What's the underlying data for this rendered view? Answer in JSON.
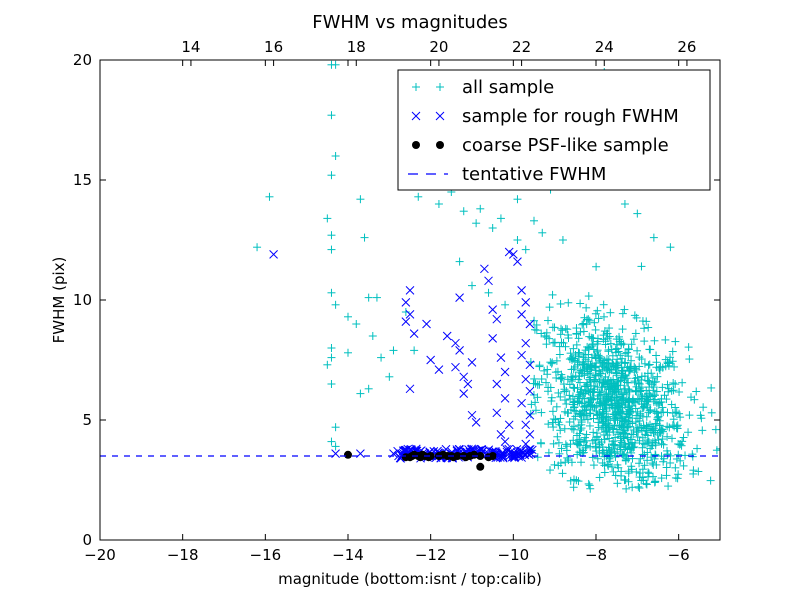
{
  "chart_data": {
    "type": "scatter",
    "title": "FWHM vs magnitudes",
    "xlabel": "magnitude (bottom:isnt / top:calib)",
    "ylabel": "FWHM (pix)",
    "xlim": [
      -20,
      -5
    ],
    "ylim": [
      0,
      20
    ],
    "x_ticks": [
      -20,
      -18,
      -16,
      -14,
      -12,
      -10,
      -8,
      -6
    ],
    "x_tick_labels": [
      "−20",
      "−18",
      "−16",
      "−14",
      "−12",
      "−10",
      "−8",
      "−6"
    ],
    "y_ticks": [
      0,
      5,
      10,
      15,
      20
    ],
    "y_tick_labels": [
      "0",
      "5",
      "10",
      "15",
      "20"
    ],
    "top_axis": {
      "offset": 31.8,
      "ticks": [
        14,
        16,
        18,
        20,
        22,
        24,
        26
      ],
      "tick_labels": [
        "14",
        "16",
        "18",
        "20",
        "22",
        "24",
        "26"
      ]
    },
    "grid": false,
    "legend_position": "top-right",
    "tentative_fwhm": 3.5,
    "series": [
      {
        "name": "all sample",
        "marker": "plus",
        "color": "#00bfbf",
        "points": [
          [
            -16.2,
            12.2
          ],
          [
            -15.9,
            14.3
          ],
          [
            -14.4,
            19.8
          ],
          [
            -14.3,
            19.8
          ],
          [
            -14.4,
            17.7
          ],
          [
            -14.3,
            16.0
          ],
          [
            -14.4,
            15.2
          ],
          [
            -14.5,
            13.4
          ],
          [
            -14.4,
            12.7
          ],
          [
            -14.4,
            12.1
          ],
          [
            -14.4,
            10.3
          ],
          [
            -14.3,
            9.8
          ],
          [
            -14.4,
            8.0
          ],
          [
            -14.4,
            7.6
          ],
          [
            -14.5,
            7.3
          ],
          [
            -14.4,
            6.5
          ],
          [
            -14.3,
            4.7
          ],
          [
            -14.4,
            4.1
          ],
          [
            -14.3,
            3.9
          ],
          [
            -14.0,
            9.3
          ],
          [
            -13.8,
            9.0
          ],
          [
            -14.0,
            7.8
          ],
          [
            -13.6,
            12.6
          ],
          [
            -13.7,
            14.2
          ],
          [
            -13.5,
            10.1
          ],
          [
            -13.3,
            10.1
          ],
          [
            -13.4,
            8.5
          ],
          [
            -13.2,
            7.6
          ],
          [
            -13.5,
            6.3
          ],
          [
            -13.7,
            6.1
          ],
          [
            -13.0,
            6.8
          ],
          [
            -12.9,
            7.9
          ],
          [
            -12.6,
            9.5
          ],
          [
            -12.4,
            7.9
          ],
          [
            -12.3,
            14.3
          ],
          [
            -11.8,
            14.0
          ],
          [
            -11.5,
            14.5
          ],
          [
            -11.2,
            13.7
          ],
          [
            -10.9,
            13.2
          ],
          [
            -10.8,
            13.8
          ],
          [
            -10.5,
            13.0
          ],
          [
            -10.3,
            13.4
          ],
          [
            -9.9,
            14.2
          ],
          [
            -11.3,
            11.6
          ],
          [
            -11.0,
            10.6
          ],
          [
            -10.6,
            10.3
          ],
          [
            -10.2,
            9.8
          ],
          [
            -9.9,
            12.5
          ],
          [
            -9.7,
            12.1
          ],
          [
            -9.5,
            13.3
          ],
          [
            -9.3,
            12.8
          ],
          [
            -9.1,
            14.6
          ],
          [
            -8.8,
            12.5
          ],
          [
            -8.4,
            15.0
          ],
          [
            -8.1,
            18.8
          ],
          [
            -7.9,
            17.7
          ],
          [
            -7.8,
            19.5
          ],
          [
            -7.5,
            16.2
          ],
          [
            -7.3,
            14.0
          ],
          [
            -7.0,
            13.6
          ],
          [
            -6.9,
            11.4
          ],
          [
            -6.6,
            12.6
          ],
          [
            -6.2,
            12.2
          ],
          [
            -5.2,
            5.3
          ],
          [
            -5.1,
            4.6
          ],
          [
            -5.0,
            3.8
          ]
        ],
        "cloud": {
          "count": 1150,
          "x_center": -7.6,
          "x_spread": 1.3,
          "y_center": 5.6,
          "y_spread": 1.7,
          "x_min": -9.6,
          "x_max": -5.0,
          "y_min": 2.1,
          "y_max": 12.0
        }
      },
      {
        "name": "sample for rough FWHM",
        "marker": "x",
        "color": "#0000ff",
        "points": [
          [
            -15.8,
            11.9
          ],
          [
            -14.3,
            3.6
          ],
          [
            -13.7,
            3.6
          ],
          [
            -12.5,
            10.4
          ],
          [
            -12.6,
            9.9
          ],
          [
            -12.5,
            9.4
          ],
          [
            -12.6,
            9.1
          ],
          [
            -12.4,
            8.6
          ],
          [
            -12.5,
            6.3
          ],
          [
            -12.1,
            9.0
          ],
          [
            -12.0,
            7.5
          ],
          [
            -11.6,
            8.5
          ],
          [
            -11.8,
            7.1
          ],
          [
            -11.3,
            10.1
          ],
          [
            -11.4,
            8.2
          ],
          [
            -11.3,
            7.9
          ],
          [
            -11.4,
            7.2
          ],
          [
            -11.2,
            6.8
          ],
          [
            -11.1,
            6.5
          ],
          [
            -11.0,
            7.4
          ],
          [
            -11.2,
            6.1
          ],
          [
            -11.0,
            5.2
          ],
          [
            -10.9,
            4.9
          ],
          [
            -10.7,
            11.3
          ],
          [
            -10.6,
            10.8
          ],
          [
            -10.5,
            9.6
          ],
          [
            -10.4,
            9.2
          ],
          [
            -10.5,
            8.4
          ],
          [
            -10.3,
            7.6
          ],
          [
            -10.2,
            7.0
          ],
          [
            -10.4,
            6.5
          ],
          [
            -10.2,
            5.9
          ],
          [
            -10.4,
            5.3
          ],
          [
            -10.1,
            4.8
          ],
          [
            -10.3,
            4.4
          ],
          [
            -10.2,
            4.1
          ],
          [
            -10.0,
            11.9
          ],
          [
            -10.1,
            12.0
          ],
          [
            -9.9,
            11.6
          ],
          [
            -9.8,
            10.4
          ],
          [
            -9.7,
            9.9
          ],
          [
            -9.8,
            9.4
          ],
          [
            -9.6,
            9.0
          ],
          [
            -9.7,
            8.2
          ],
          [
            -9.8,
            7.7
          ],
          [
            -9.6,
            7.3
          ],
          [
            -9.7,
            6.7
          ],
          [
            -9.6,
            6.2
          ],
          [
            -9.8,
            5.7
          ],
          [
            -9.6,
            5.2
          ],
          [
            -9.7,
            4.8
          ],
          [
            -9.6,
            4.4
          ],
          [
            -9.7,
            4.0
          ],
          [
            -12.9,
            3.6
          ],
          [
            -12.8,
            3.7
          ],
          [
            -12.2,
            3.6
          ],
          [
            -11.8,
            3.5
          ],
          [
            -11.5,
            3.6
          ],
          [
            -10.9,
            3.6
          ],
          [
            -10.3,
            3.5
          ]
        ],
        "band": {
          "count": 140,
          "x_min": -12.8,
          "x_max": -9.5,
          "y_min": 3.4,
          "y_max": 3.8
        }
      },
      {
        "name": "coarse PSF-like sample",
        "marker": "circle",
        "color": "#000000",
        "points": [
          [
            -14.0,
            3.55
          ],
          [
            -12.6,
            3.45
          ],
          [
            -12.5,
            3.45
          ],
          [
            -12.45,
            3.5
          ],
          [
            -12.4,
            3.55
          ],
          [
            -12.3,
            3.5
          ],
          [
            -12.25,
            3.45
          ],
          [
            -12.2,
            3.55
          ],
          [
            -12.15,
            3.5
          ],
          [
            -12.05,
            3.45
          ],
          [
            -12.0,
            3.5
          ],
          [
            -11.8,
            3.5
          ],
          [
            -11.7,
            3.55
          ],
          [
            -11.6,
            3.5
          ],
          [
            -11.5,
            3.5
          ],
          [
            -11.45,
            3.45
          ],
          [
            -11.35,
            3.5
          ],
          [
            -11.2,
            3.5
          ],
          [
            -11.15,
            3.45
          ],
          [
            -11.05,
            3.5
          ],
          [
            -10.95,
            3.55
          ],
          [
            -10.8,
            3.5
          ],
          [
            -10.8,
            3.05
          ],
          [
            -10.6,
            3.45
          ],
          [
            -10.5,
            3.5
          ]
        ]
      },
      {
        "name": "tentative FWHM",
        "marker": "dashed-line",
        "color": "#0000ff",
        "y": 3.5
      }
    ]
  }
}
